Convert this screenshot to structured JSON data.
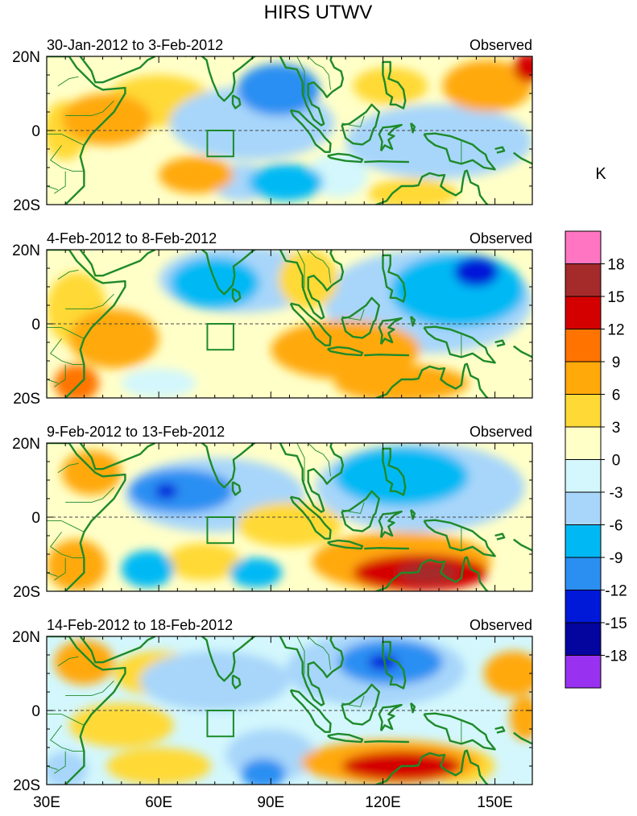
{
  "chart_data": {
    "type": "heatmap",
    "title": "HIRS UTWV",
    "units_label": "K",
    "x_ticks": [
      "30E",
      "60E",
      "90E",
      "120E",
      "150E"
    ],
    "x_tick_values": [
      30,
      60,
      90,
      120,
      150
    ],
    "y_ticks": [
      "20N",
      "0",
      "20S"
    ],
    "y_tick_values": [
      20,
      0,
      -20
    ],
    "xlim": [
      30,
      160
    ],
    "ylim": [
      -20,
      20
    ],
    "equator_line": "dashed",
    "box_region": {
      "lon_range": [
        73,
        80
      ],
      "lat_range": [
        -7,
        0
      ]
    },
    "colorbar": {
      "levels": [
        "18",
        "15",
        "12",
        "9",
        "6",
        "3",
        "0",
        "-3",
        "-6",
        "-9",
        "-12",
        "-15",
        "-18"
      ],
      "colors": [
        "#ff75c2",
        "#a52a2a",
        "#d40000",
        "#ff7400",
        "#ffa90a",
        "#ffd935",
        "#ffffc8",
        "#d3f7fc",
        "#a7d6fa",
        "#00b9f4",
        "#2b8ff2",
        "#0019d8",
        "#04049e",
        "#9932f0"
      ]
    },
    "panels": [
      {
        "period": "30-Jan-2012 to 3-Feb-2012",
        "label": "Observed",
        "background": 1,
        "anomalies": [
          {
            "lon": 46,
            "lat": 3,
            "value": 7,
            "rx": 12,
            "ry": 7
          },
          {
            "lon": 35,
            "lat": 0,
            "value": 4,
            "rx": 6,
            "ry": 8
          },
          {
            "lon": 70,
            "lat": -12,
            "value": 6,
            "rx": 10,
            "ry": 5
          },
          {
            "lon": 60,
            "lat": 8,
            "value": 4,
            "rx": 14,
            "ry": 7
          },
          {
            "lon": 92,
            "lat": 11,
            "value": -12,
            "rx": 11,
            "ry": 7
          },
          {
            "lon": 85,
            "lat": 2,
            "value": -4,
            "rx": 22,
            "ry": 10
          },
          {
            "lon": 94,
            "lat": -14,
            "value": -7,
            "rx": 10,
            "ry": 5
          },
          {
            "lon": 82,
            "lat": -14,
            "value": -5,
            "rx": 8,
            "ry": 5
          },
          {
            "lon": 135,
            "lat": -3,
            "value": -4,
            "rx": 25,
            "ry": 10
          },
          {
            "lon": 122,
            "lat": 12,
            "value": 4,
            "rx": 10,
            "ry": 5
          },
          {
            "lon": 148,
            "lat": 12,
            "value": 7,
            "rx": 12,
            "ry": 7
          },
          {
            "lon": 159,
            "lat": 17,
            "value": 13,
            "rx": 4,
            "ry": 4
          },
          {
            "lon": 108,
            "lat": -12,
            "value": -3,
            "rx": 8,
            "ry": 6
          },
          {
            "lon": 128,
            "lat": -17,
            "value": 5,
            "rx": 12,
            "ry": 4
          }
        ]
      },
      {
        "period": "4-Feb-2012 to 8-Feb-2012",
        "label": "Observed",
        "background": 1,
        "anomalies": [
          {
            "lon": 48,
            "lat": -4,
            "value": 7,
            "rx": 12,
            "ry": 8
          },
          {
            "lon": 38,
            "lat": 4,
            "value": 5,
            "rx": 8,
            "ry": 10
          },
          {
            "lon": 38,
            "lat": -16,
            "value": 10,
            "rx": 6,
            "ry": 5
          },
          {
            "lon": 75,
            "lat": 11,
            "value": -8,
            "rx": 12,
            "ry": 7
          },
          {
            "lon": 82,
            "lat": 12,
            "value": -4,
            "rx": 22,
            "ry": 9
          },
          {
            "lon": 145,
            "lat": 14,
            "value": -13,
            "rx": 6,
            "ry": 4
          },
          {
            "lon": 140,
            "lat": 9,
            "value": -8,
            "rx": 18,
            "ry": 10
          },
          {
            "lon": 132,
            "lat": 6,
            "value": -4,
            "rx": 28,
            "ry": 14
          },
          {
            "lon": 100,
            "lat": 12,
            "value": 5,
            "rx": 8,
            "ry": 8
          },
          {
            "lon": 110,
            "lat": -7,
            "value": 7,
            "rx": 20,
            "ry": 8
          },
          {
            "lon": 125,
            "lat": -16,
            "value": 7,
            "rx": 18,
            "ry": 5
          },
          {
            "lon": 60,
            "lat": -16,
            "value": -3,
            "rx": 10,
            "ry": 4
          }
        ]
      },
      {
        "period": "9-Feb-2012 to 13-Feb-2012",
        "label": "Observed",
        "background": 1,
        "anomalies": [
          {
            "lon": 66,
            "lat": 7,
            "value": -11,
            "rx": 14,
            "ry": 6
          },
          {
            "lon": 62,
            "lat": 7,
            "value": -14,
            "rx": 3,
            "ry": 2
          },
          {
            "lon": 75,
            "lat": 6,
            "value": -4,
            "rx": 24,
            "ry": 10
          },
          {
            "lon": 125,
            "lat": 11,
            "value": -8,
            "rx": 18,
            "ry": 8
          },
          {
            "lon": 130,
            "lat": 8,
            "value": -4,
            "rx": 28,
            "ry": 12
          },
          {
            "lon": 130,
            "lat": -15,
            "value": 13,
            "rx": 18,
            "ry": 5
          },
          {
            "lon": 132,
            "lat": -15,
            "value": 17,
            "rx": 8,
            "ry": 3
          },
          {
            "lon": 125,
            "lat": -12,
            "value": 7,
            "rx": 24,
            "ry": 8
          },
          {
            "lon": 95,
            "lat": -2,
            "value": 5,
            "rx": 14,
            "ry": 6
          },
          {
            "lon": 42,
            "lat": 12,
            "value": 7,
            "rx": 8,
            "ry": 6
          },
          {
            "lon": 38,
            "lat": -13,
            "value": 6,
            "rx": 8,
            "ry": 7
          },
          {
            "lon": 57,
            "lat": -14,
            "value": -8,
            "rx": 7,
            "ry": 5
          },
          {
            "lon": 86,
            "lat": -15,
            "value": -8,
            "rx": 7,
            "ry": 4
          },
          {
            "lon": 72,
            "lat": -12,
            "value": 4,
            "rx": 10,
            "ry": 5
          }
        ]
      },
      {
        "period": "14-Feb-2012 to 18-Feb-2012",
        "label": "Observed",
        "background": -1,
        "anomalies": [
          {
            "lon": 122,
            "lat": 13,
            "value": -11,
            "rx": 14,
            "ry": 6
          },
          {
            "lon": 120,
            "lat": 13,
            "value": -14,
            "rx": 4,
            "ry": 2
          },
          {
            "lon": 118,
            "lat": 11,
            "value": -5,
            "rx": 24,
            "ry": 10
          },
          {
            "lon": 75,
            "lat": 8,
            "value": -5,
            "rx": 20,
            "ry": 8
          },
          {
            "lon": 60,
            "lat": 10,
            "value": 3,
            "rx": 12,
            "ry": 6
          },
          {
            "lon": 40,
            "lat": 13,
            "value": 6,
            "rx": 8,
            "ry": 6
          },
          {
            "lon": 50,
            "lat": -4,
            "value": 4,
            "rx": 14,
            "ry": 6
          },
          {
            "lon": 125,
            "lat": -15,
            "value": 12,
            "rx": 16,
            "ry": 4
          },
          {
            "lon": 122,
            "lat": -14,
            "value": 7,
            "rx": 24,
            "ry": 6
          },
          {
            "lon": 88,
            "lat": -17,
            "value": -12,
            "rx": 6,
            "ry": 4
          },
          {
            "lon": 90,
            "lat": -12,
            "value": -5,
            "rx": 12,
            "ry": 7
          },
          {
            "lon": 155,
            "lat": 10,
            "value": 7,
            "rx": 8,
            "ry": 6
          },
          {
            "lon": 158,
            "lat": -2,
            "value": 6,
            "rx": 4,
            "ry": 6
          },
          {
            "lon": 60,
            "lat": -15,
            "value": 5,
            "rx": 14,
            "ry": 5
          },
          {
            "lon": 140,
            "lat": -15,
            "value": 4,
            "rx": 10,
            "ry": 5
          },
          {
            "lon": 35,
            "lat": -16,
            "value": -5,
            "rx": 6,
            "ry": 5
          }
        ]
      }
    ]
  }
}
